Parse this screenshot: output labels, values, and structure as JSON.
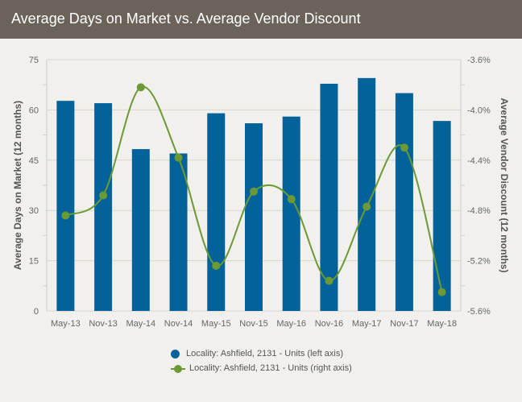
{
  "title": "Average Days on Market vs. Average Vendor Discount",
  "chart_data": {
    "type": "bar+line",
    "title": "Average Days on Market vs. Average Vendor Discount",
    "categories": [
      "May-13",
      "Nov-13",
      "May-14",
      "Nov-14",
      "May-15",
      "Nov-15",
      "May-16",
      "Nov-16",
      "May-17",
      "Nov-17",
      "May-18"
    ],
    "series": [
      {
        "name": "Locality: Ashfield, 2131 - Units (left axis)",
        "type": "bar",
        "axis": "left",
        "color": "#04629a",
        "values": [
          62.7,
          62,
          48.3,
          47,
          59,
          56,
          58,
          67.8,
          69.5,
          65,
          56.7
        ]
      },
      {
        "name": "Locality: Ashfield, 2131 - Units (right axis)",
        "type": "line",
        "axis": "right",
        "color": "#6b9a35",
        "values": [
          -4.84,
          -4.68,
          -3.82,
          -4.38,
          -5.24,
          -4.65,
          -4.71,
          -5.36,
          -4.77,
          -4.3,
          -5.45
        ]
      }
    ],
    "ylabel": "Average Days on Market (12 months)",
    "y2label": "Average Vendor Discount (12 months)",
    "ylim": [
      0,
      75
    ],
    "y2lim": [
      -5.6,
      -3.6
    ],
    "yticks": [
      "0",
      "15",
      "30",
      "45",
      "60",
      "75"
    ],
    "y2ticks": [
      "-5.6%",
      "-5.2%",
      "-4.8%",
      "-4.4%",
      "-4.0%",
      "-3.6%"
    ],
    "grid": true,
    "legend": "bottom-center"
  }
}
